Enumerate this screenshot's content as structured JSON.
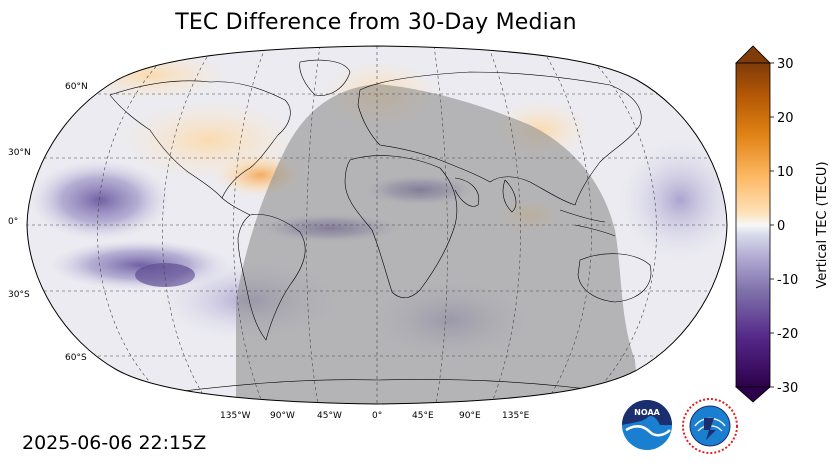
{
  "title": "TEC Difference from 30-Day Median",
  "timestamp": "2025-06-06 22:15Z",
  "map": {
    "projection": "Robinson",
    "night_overlay": true,
    "lat_labels": [
      "60°N",
      "30°N",
      "0°",
      "30°S",
      "60°S"
    ],
    "lon_labels": [
      "135°W",
      "90°W",
      "45°W",
      "0°",
      "45°E",
      "90°E",
      "135°E"
    ],
    "colors": {
      "ocean_neutral": "#eeeef2",
      "night_shade": "#9a9a9a",
      "coastline": "#000000",
      "gridline": "#444444"
    }
  },
  "colorbar": {
    "label": "Vertical TEC (TECU)",
    "min": -30,
    "max": 30,
    "ticks": [
      "30",
      "20",
      "10",
      "0",
      "-10",
      "-20",
      "-30"
    ],
    "extend": "both",
    "colormap": "PuOr (purple negative, orange positive)",
    "colors": [
      "#2d004b",
      "#542788",
      "#8073ac",
      "#b2abd2",
      "#d8daeb",
      "#f7f7f7",
      "#fee0b6",
      "#fdb863",
      "#e08214",
      "#b35806",
      "#7f3b08"
    ]
  },
  "logos": {
    "noaa": "NOAA",
    "nws": "NATIONAL WEATHER SERVICE"
  }
}
